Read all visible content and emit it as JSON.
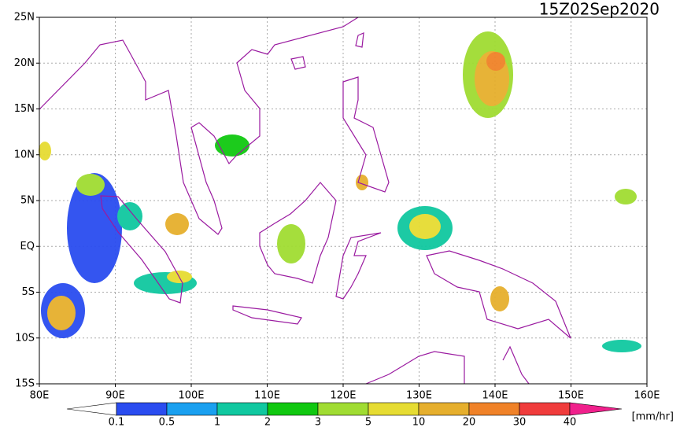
{
  "map": {
    "title": "15Z02Sep2020",
    "lonlim": [
      80,
      160
    ],
    "latlim": [
      -15,
      25
    ],
    "lon_ticks": [
      {
        "value": 80,
        "label": "80E"
      },
      {
        "value": 90,
        "label": "90E"
      },
      {
        "value": 100,
        "label": "100E"
      },
      {
        "value": 110,
        "label": "110E"
      },
      {
        "value": 120,
        "label": "120E"
      },
      {
        "value": 130,
        "label": "130E"
      },
      {
        "value": 140,
        "label": "140E"
      },
      {
        "value": 150,
        "label": "150E"
      },
      {
        "value": 160,
        "label": "160E"
      }
    ],
    "lat_ticks": [
      {
        "value": 25,
        "label": "25N"
      },
      {
        "value": 20,
        "label": "20N"
      },
      {
        "value": 15,
        "label": "15N"
      },
      {
        "value": 10,
        "label": "10N"
      },
      {
        "value": 5,
        "label": "5N"
      },
      {
        "value": 0,
        "label": "EQ"
      },
      {
        "value": -5,
        "label": "5S"
      },
      {
        "value": -10,
        "label": "10S"
      },
      {
        "value": -15,
        "label": "15S"
      }
    ]
  },
  "colorbar": {
    "levels": [
      0.1,
      0.5,
      1,
      2,
      3,
      5,
      10,
      20,
      30,
      40
    ],
    "colors": [
      "#ffffff",
      "#2a4cf0",
      "#1aa0f0",
      "#10c8a0",
      "#10c810",
      "#a0dc32",
      "#e6dc32",
      "#e6af2d",
      "#f08228",
      "#f03c3c",
      "#f0208c"
    ],
    "unit": "[mm/hr]"
  }
}
